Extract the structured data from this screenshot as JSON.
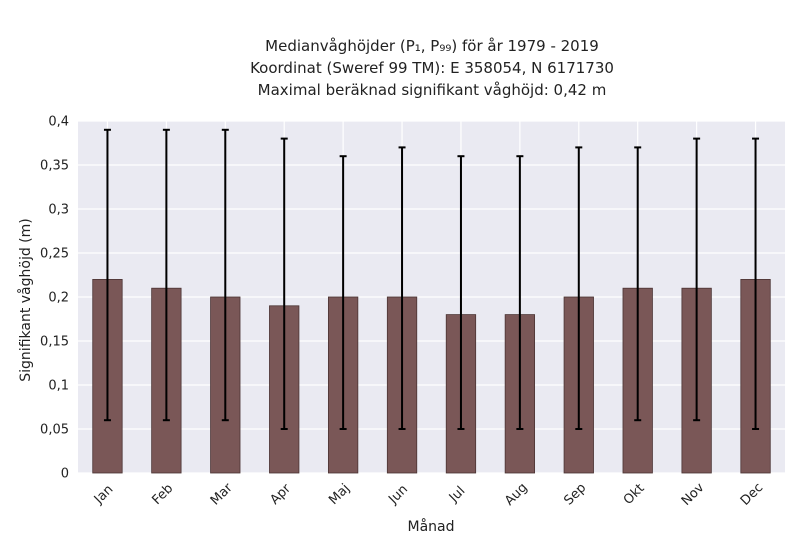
{
  "chart_data": {
    "type": "bar",
    "title_lines": [
      "Medianvåghöjder (P₁, P₉₉) för år 1979 - 2019",
      "Koordinat (Sweref 99 TM): E 358054, N 6171730",
      "Maximal beräknad signifikant våghöjd: 0,42 m"
    ],
    "xlabel": "Månad",
    "ylabel": "Signifikant våghöjd (m)",
    "categories": [
      "Jan",
      "Feb",
      "Mar",
      "Apr",
      "Maj",
      "Jun",
      "Jul",
      "Aug",
      "Sep",
      "Okt",
      "Nov",
      "Dec"
    ],
    "values": [
      0.22,
      0.21,
      0.2,
      0.19,
      0.2,
      0.2,
      0.18,
      0.18,
      0.2,
      0.21,
      0.21,
      0.22
    ],
    "p1": [
      0.06,
      0.06,
      0.06,
      0.05,
      0.05,
      0.05,
      0.05,
      0.05,
      0.05,
      0.06,
      0.06,
      0.05
    ],
    "p99": [
      0.39,
      0.39,
      0.39,
      0.38,
      0.36,
      0.37,
      0.36,
      0.36,
      0.37,
      0.37,
      0.38,
      0.38
    ],
    "ylim": [
      0,
      0.4
    ],
    "yticks": [
      {
        "value": 0,
        "label": "0"
      },
      {
        "value": 0.05,
        "label": "0,05"
      },
      {
        "value": 0.1,
        "label": "0,1"
      },
      {
        "value": 0.15,
        "label": "0,15"
      },
      {
        "value": 0.2,
        "label": "0,2"
      },
      {
        "value": 0.25,
        "label": "0,25"
      },
      {
        "value": 0.3,
        "label": "0,3"
      },
      {
        "value": 0.35,
        "label": "0,35"
      },
      {
        "value": 0.4,
        "label": "0,4"
      }
    ],
    "grid": true,
    "colors": {
      "bar": "#7a5757",
      "bar_edge": "#4a3333",
      "errorbar": "#000000",
      "plot_bg": "#eaeaf2",
      "grid": "#ffffff"
    }
  }
}
